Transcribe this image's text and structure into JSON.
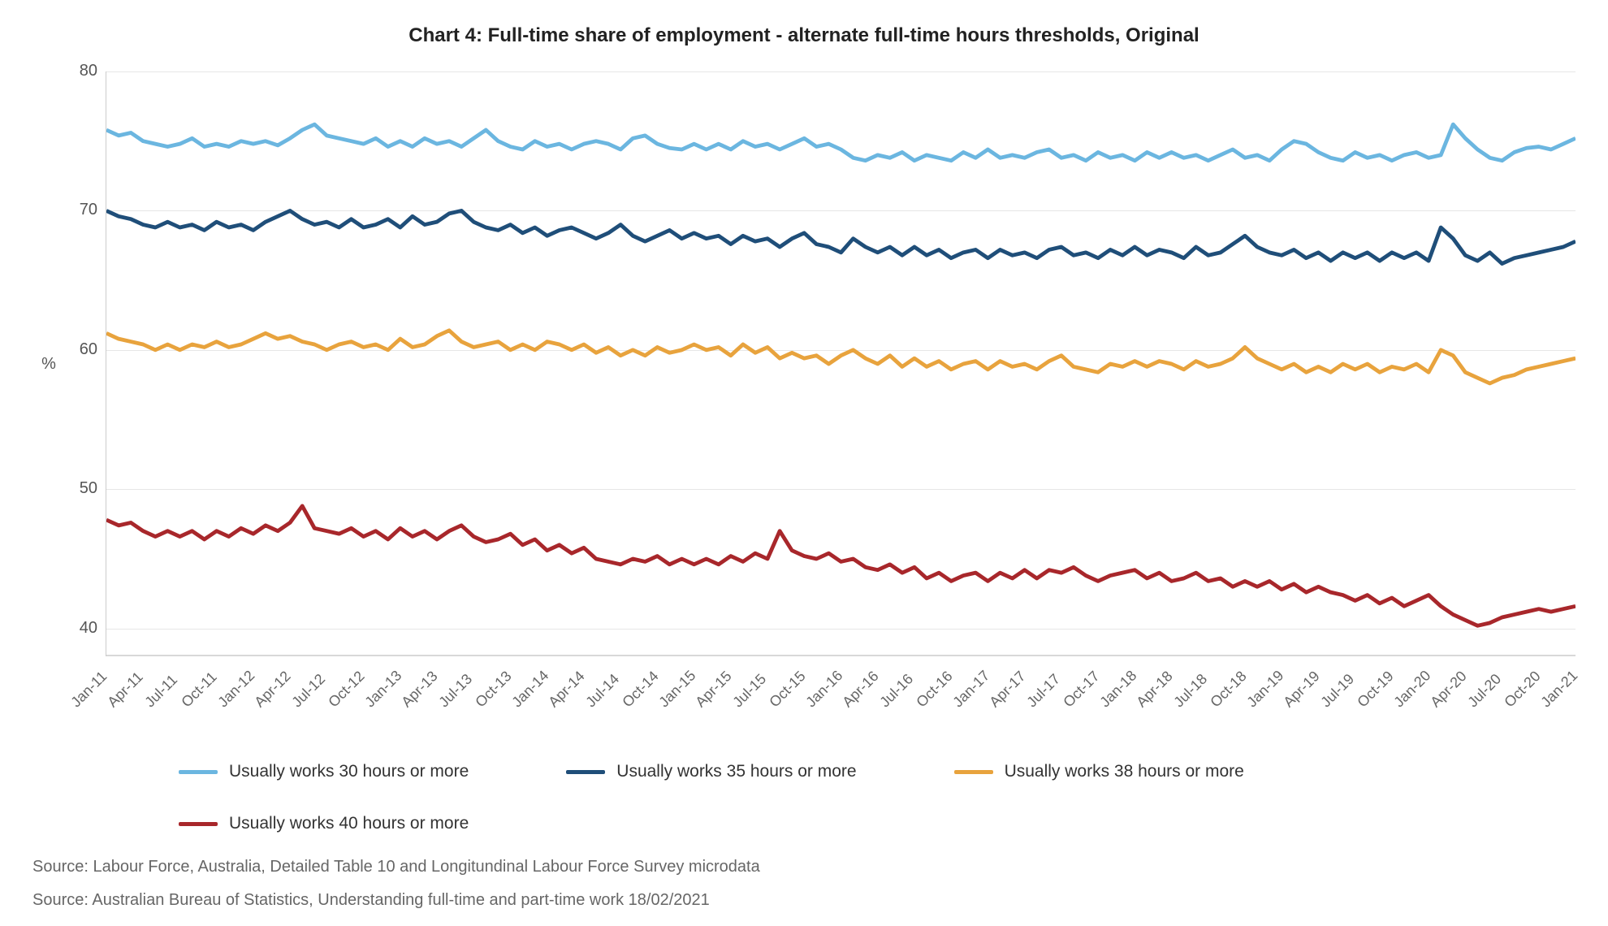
{
  "chart": {
    "type": "line",
    "title": "Chart 4: Full-time share of employment - alternate full-time hours thresholds, Original",
    "title_fontsize": 24,
    "title_weight": 600,
    "ylabel": "%",
    "label_fontsize": 20,
    "ylim": [
      38,
      80
    ],
    "yticks": [
      80,
      70,
      60,
      50,
      40
    ],
    "grid_color": "#e6e6e6",
    "baseline_color": "#d8d8d8",
    "background_color": "#ffffff",
    "line_width": 3,
    "x_labels": [
      "Jan-11",
      "Apr-11",
      "Jul-11",
      "Oct-11",
      "Jan-12",
      "Apr-12",
      "Jul-12",
      "Oct-12",
      "Jan-13",
      "Apr-13",
      "Jul-13",
      "Oct-13",
      "Jan-14",
      "Apr-14",
      "Jul-14",
      "Oct-14",
      "Jan-15",
      "Apr-15",
      "Jul-15",
      "Oct-15",
      "Jan-16",
      "Apr-16",
      "Jul-16",
      "Oct-16",
      "Jan-17",
      "Apr-17",
      "Jul-17",
      "Oct-17",
      "Jan-18",
      "Apr-18",
      "Jul-18",
      "Oct-18",
      "Jan-19",
      "Apr-19",
      "Jul-19",
      "Oct-19",
      "Jan-20",
      "Apr-20",
      "Jul-20",
      "Oct-20",
      "Jan-21"
    ],
    "n_points": 121,
    "series": [
      {
        "name": "Usually works 30 hours or more",
        "color": "#6bb6e0",
        "values": [
          75.8,
          75.4,
          75.6,
          75.0,
          74.8,
          74.6,
          74.8,
          75.2,
          74.6,
          74.8,
          74.6,
          75.0,
          74.8,
          75.0,
          74.7,
          75.2,
          75.8,
          76.2,
          75.4,
          75.2,
          75.0,
          74.8,
          75.2,
          74.6,
          75.0,
          74.6,
          75.2,
          74.8,
          75.0,
          74.6,
          75.2,
          75.8,
          75.0,
          74.6,
          74.4,
          75.0,
          74.6,
          74.8,
          74.4,
          74.8,
          75.0,
          74.8,
          74.4,
          75.2,
          75.4,
          74.8,
          74.5,
          74.4,
          74.8,
          74.4,
          74.8,
          74.4,
          75.0,
          74.6,
          74.8,
          74.4,
          74.8,
          75.2,
          74.6,
          74.8,
          74.4,
          73.8,
          73.6,
          74.0,
          73.8,
          74.2,
          73.6,
          74.0,
          73.8,
          73.6,
          74.2,
          73.8,
          74.4,
          73.8,
          74.0,
          73.8,
          74.2,
          74.4,
          73.8,
          74.0,
          73.6,
          74.2,
          73.8,
          74.0,
          73.6,
          74.2,
          73.8,
          74.2,
          73.8,
          74.0,
          73.6,
          74.0,
          74.4,
          73.8,
          74.0,
          73.6,
          74.4,
          75.0,
          74.8,
          74.2,
          73.8,
          73.6,
          74.2,
          73.8,
          74.0,
          73.6,
          74.0,
          74.2,
          73.8,
          74.0,
          76.2,
          75.2,
          74.4,
          73.8,
          73.6,
          74.2,
          74.5,
          74.6,
          74.4,
          74.8,
          75.2
        ]
      },
      {
        "name": "Usually works 35 hours or more",
        "color": "#1f4e79",
        "values": [
          70.0,
          69.6,
          69.4,
          69.0,
          68.8,
          69.2,
          68.8,
          69.0,
          68.6,
          69.2,
          68.8,
          69.0,
          68.6,
          69.2,
          69.6,
          70.0,
          69.4,
          69.0,
          69.2,
          68.8,
          69.4,
          68.8,
          69.0,
          69.4,
          68.8,
          69.6,
          69.0,
          69.2,
          69.8,
          70.0,
          69.2,
          68.8,
          68.6,
          69.0,
          68.4,
          68.8,
          68.2,
          68.6,
          68.8,
          68.4,
          68.0,
          68.4,
          69.0,
          68.2,
          67.8,
          68.2,
          68.6,
          68.0,
          68.4,
          68.0,
          68.2,
          67.6,
          68.2,
          67.8,
          68.0,
          67.4,
          68.0,
          68.4,
          67.6,
          67.4,
          67.0,
          68.0,
          67.4,
          67.0,
          67.4,
          66.8,
          67.4,
          66.8,
          67.2,
          66.6,
          67.0,
          67.2,
          66.6,
          67.2,
          66.8,
          67.0,
          66.6,
          67.2,
          67.4,
          66.8,
          67.0,
          66.6,
          67.2,
          66.8,
          67.4,
          66.8,
          67.2,
          67.0,
          66.6,
          67.4,
          66.8,
          67.0,
          67.6,
          68.2,
          67.4,
          67.0,
          66.8,
          67.2,
          66.6,
          67.0,
          66.4,
          67.0,
          66.6,
          67.0,
          66.4,
          67.0,
          66.6,
          67.0,
          66.4,
          68.8,
          68.0,
          66.8,
          66.4,
          67.0,
          66.2,
          66.6,
          66.8,
          67.0,
          67.2,
          67.4,
          67.8
        ]
      },
      {
        "name": "Usually works 38 hours or more",
        "color": "#e8a33d",
        "values": [
          61.2,
          60.8,
          60.6,
          60.4,
          60.0,
          60.4,
          60.0,
          60.4,
          60.2,
          60.6,
          60.2,
          60.4,
          60.8,
          61.2,
          60.8,
          61.0,
          60.6,
          60.4,
          60.0,
          60.4,
          60.6,
          60.2,
          60.4,
          60.0,
          60.8,
          60.2,
          60.4,
          61.0,
          61.4,
          60.6,
          60.2,
          60.4,
          60.6,
          60.0,
          60.4,
          60.0,
          60.6,
          60.4,
          60.0,
          60.4,
          59.8,
          60.2,
          59.6,
          60.0,
          59.6,
          60.2,
          59.8,
          60.0,
          60.4,
          60.0,
          60.2,
          59.6,
          60.4,
          59.8,
          60.2,
          59.4,
          59.8,
          59.4,
          59.6,
          59.0,
          59.6,
          60.0,
          59.4,
          59.0,
          59.6,
          58.8,
          59.4,
          58.8,
          59.2,
          58.6,
          59.0,
          59.2,
          58.6,
          59.2,
          58.8,
          59.0,
          58.6,
          59.2,
          59.6,
          58.8,
          58.6,
          58.4,
          59.0,
          58.8,
          59.2,
          58.8,
          59.2,
          59.0,
          58.6,
          59.2,
          58.8,
          59.0,
          59.4,
          60.2,
          59.4,
          59.0,
          58.6,
          59.0,
          58.4,
          58.8,
          58.4,
          59.0,
          58.6,
          59.0,
          58.4,
          58.8,
          58.6,
          59.0,
          58.4,
          60.0,
          59.6,
          58.4,
          58.0,
          57.6,
          58.0,
          58.2,
          58.6,
          58.8,
          59.0,
          59.2,
          59.4
        ]
      },
      {
        "name": "Usually works 40 hours or more",
        "color": "#a8272b",
        "values": [
          47.8,
          47.4,
          47.6,
          47.0,
          46.6,
          47.0,
          46.6,
          47.0,
          46.4,
          47.0,
          46.6,
          47.2,
          46.8,
          47.4,
          47.0,
          47.6,
          48.8,
          47.2,
          47.0,
          46.8,
          47.2,
          46.6,
          47.0,
          46.4,
          47.2,
          46.6,
          47.0,
          46.4,
          47.0,
          47.4,
          46.6,
          46.2,
          46.4,
          46.8,
          46.0,
          46.4,
          45.6,
          46.0,
          45.4,
          45.8,
          45.0,
          44.8,
          44.6,
          45.0,
          44.8,
          45.2,
          44.6,
          45.0,
          44.6,
          45.0,
          44.6,
          45.2,
          44.8,
          45.4,
          45.0,
          47.0,
          45.6,
          45.2,
          45.0,
          45.4,
          44.8,
          45.0,
          44.4,
          44.2,
          44.6,
          44.0,
          44.4,
          43.6,
          44.0,
          43.4,
          43.8,
          44.0,
          43.4,
          44.0,
          43.6,
          44.2,
          43.6,
          44.2,
          44.0,
          44.4,
          43.8,
          43.4,
          43.8,
          44.0,
          44.2,
          43.6,
          44.0,
          43.4,
          43.6,
          44.0,
          43.4,
          43.6,
          43.0,
          43.4,
          43.0,
          43.4,
          42.8,
          43.2,
          42.6,
          43.0,
          42.6,
          42.4,
          42.0,
          42.4,
          41.8,
          42.2,
          41.6,
          42.0,
          42.4,
          41.6,
          41.0,
          40.6,
          40.2,
          40.4,
          40.8,
          41.0,
          41.2,
          41.4,
          41.2,
          41.4,
          41.6
        ]
      }
    ]
  },
  "legend": {
    "items": [
      {
        "label": "Usually works 30 hours or more",
        "color": "#6bb6e0"
      },
      {
        "label": "Usually works 35 hours or more",
        "color": "#1f4e79"
      },
      {
        "label": "Usually works 38 hours or more",
        "color": "#e8a33d"
      },
      {
        "label": "Usually works 40 hours or more",
        "color": "#a8272b"
      }
    ]
  },
  "sources": [
    "Source: Labour Force, Australia, Detailed Table 10 and Longitundinal Labour Force Survey microdata",
    "Source: Australian Bureau of Statistics, Understanding full-time and part-time work 18/02/2021"
  ]
}
